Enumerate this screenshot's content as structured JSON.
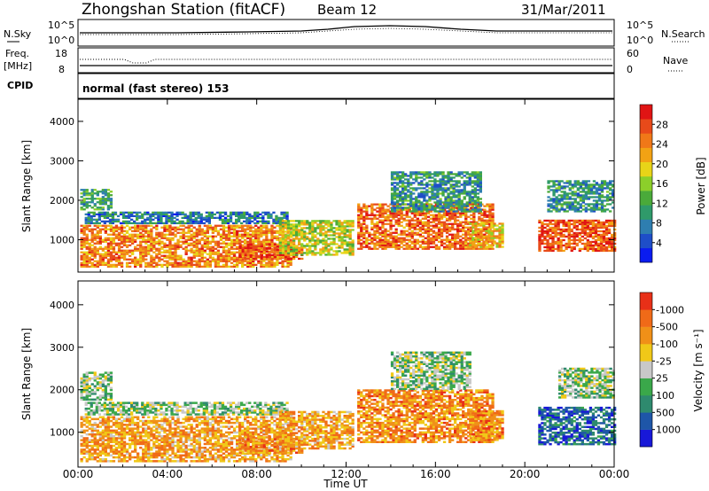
{
  "header": {
    "station": "Zhongshan Station (fitACF)",
    "beam": "Beam 12",
    "date": "31/Mar/2011"
  },
  "panels": {
    "noise": {
      "left_label": "N.Sky",
      "left_ticks": [
        "10^5",
        "10^0"
      ],
      "right_ticks": [
        "10^5",
        "10^0"
      ],
      "right_label": "N.Search"
    },
    "freq": {
      "left_label_1": "Freq.",
      "left_label_2": "[MHz]",
      "left_ticks": [
        "18",
        "8"
      ],
      "right_ticks": [
        "60",
        "0"
      ],
      "right_label": "Nave"
    },
    "cpid": {
      "label": "CPID",
      "text": "normal (fast stereo) 153"
    }
  },
  "chart_data": [
    {
      "type": "heatmap",
      "name": "power",
      "ylabel": "Slant Range [km]",
      "yticks": [
        1000,
        2000,
        3000,
        4000
      ],
      "ylim": [
        180,
        4560
      ],
      "xlabel": "Time UT",
      "xticks": [
        "00:00",
        "04:00",
        "08:00",
        "12:00",
        "16:00",
        "20:00",
        "00:00"
      ],
      "xlim_hours": [
        0,
        24
      ],
      "colorbar": {
        "label": "Power [dB]",
        "ticks": [
          "4",
          "8",
          "12",
          "16",
          "20",
          "24",
          "28"
        ],
        "colors": [
          "#0a1cf0",
          "#1e4ec8",
          "#2e7eb0",
          "#2f9a6a",
          "#4aaa3a",
          "#8ccf2a",
          "#e8d418",
          "#f2a214",
          "#f07818",
          "#e84a1a",
          "#e01414"
        ]
      },
      "echo_regions": [
        {
          "t0": 0.1,
          "t1": 9.5,
          "r0": 300,
          "r1": 1350,
          "level": 0.75
        },
        {
          "t0": 0.3,
          "t1": 9.3,
          "r0": 1400,
          "r1": 1700,
          "level": 0.25
        },
        {
          "t0": 0.1,
          "t1": 1.5,
          "r0": 1750,
          "r1": 2250,
          "level": 0.35
        },
        {
          "t0": 7.2,
          "t1": 10.0,
          "r0": 500,
          "r1": 900,
          "level": 0.85
        },
        {
          "t0": 9.0,
          "t1": 12.3,
          "r0": 600,
          "r1": 1500,
          "level": 0.55
        },
        {
          "t0": 12.5,
          "t1": 18.6,
          "r0": 750,
          "r1": 1900,
          "level": 0.8
        },
        {
          "t0": 14.0,
          "t1": 18.0,
          "r0": 1700,
          "r1": 2700,
          "level": 0.3
        },
        {
          "t0": 17.5,
          "t1": 19.0,
          "r0": 800,
          "r1": 1400,
          "level": 0.65
        },
        {
          "t0": 20.6,
          "t1": 24.0,
          "r0": 700,
          "r1": 1500,
          "level": 0.85
        },
        {
          "t0": 21.0,
          "t1": 24.0,
          "r0": 1700,
          "r1": 2500,
          "level": 0.3
        }
      ]
    },
    {
      "type": "heatmap",
      "name": "velocity",
      "ylabel": "Slant Range [km]",
      "yticks": [
        1000,
        2000,
        3000,
        4000
      ],
      "ylim": [
        180,
        4560
      ],
      "xlabel": "Time UT",
      "xticks": [
        "00:00",
        "04:00",
        "08:00",
        "12:00",
        "16:00",
        "20:00",
        "00:00"
      ],
      "xlim_hours": [
        0,
        24
      ],
      "colorbar": {
        "label": "Velocity [m s⁻¹]",
        "ticks": [
          "1000",
          "500",
          "100",
          "25",
          "-25",
          "-100",
          "-500",
          "-1000"
        ],
        "colors": [
          "#1818d8",
          "#1e56a8",
          "#2e8a6e",
          "#3aa84a",
          "#c8c8c8",
          "#f0c818",
          "#f09018",
          "#f06a18",
          "#e83018"
        ]
      },
      "echo_regions": [
        {
          "t0": 0.1,
          "t1": 9.5,
          "r0": 300,
          "r1": 1350,
          "level": 0.7
        },
        {
          "t0": 0.3,
          "t1": 9.3,
          "r0": 1400,
          "r1": 1700,
          "level": 0.45
        },
        {
          "t0": 0.1,
          "t1": 1.5,
          "r0": 1750,
          "r1": 2400,
          "level": 0.45
        },
        {
          "t0": 7.2,
          "t1": 10.0,
          "r0": 500,
          "r1": 900,
          "level": 0.75
        },
        {
          "t0": 9.0,
          "t1": 12.3,
          "r0": 600,
          "r1": 1500,
          "level": 0.7
        },
        {
          "t0": 12.5,
          "t1": 18.6,
          "r0": 750,
          "r1": 2000,
          "level": 0.75
        },
        {
          "t0": 14.0,
          "t1": 17.5,
          "r0": 2000,
          "r1": 2900,
          "level": 0.45
        },
        {
          "t0": 17.5,
          "t1": 19.0,
          "r0": 800,
          "r1": 1500,
          "level": 0.75
        },
        {
          "t0": 20.6,
          "t1": 24.0,
          "r0": 700,
          "r1": 1600,
          "level": 0.2
        },
        {
          "t0": 21.5,
          "t1": 24.0,
          "r0": 1800,
          "r1": 2500,
          "level": 0.45
        }
      ]
    }
  ]
}
